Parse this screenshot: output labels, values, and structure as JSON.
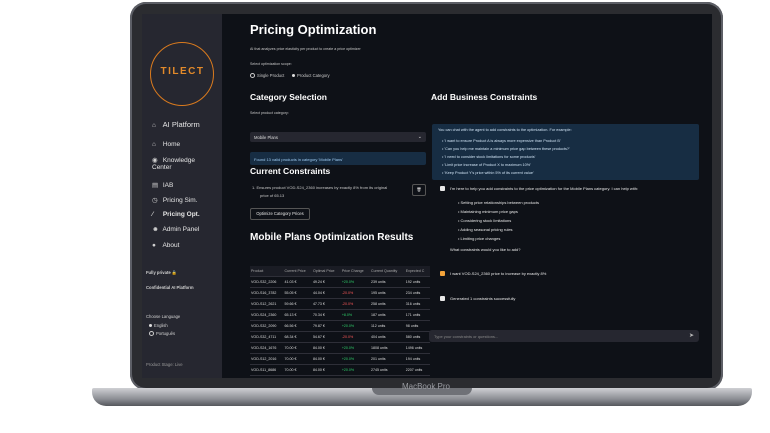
{
  "device": {
    "label": "MacBook Pro"
  },
  "sidebar": {
    "logo": "TILECT",
    "items": [
      {
        "label": "AI Platform",
        "icon": "house-icon"
      },
      {
        "label": "Home",
        "icon": "home-icon"
      },
      {
        "label": "Knowledge",
        "label2": "Center",
        "icon": "knowledge-icon"
      },
      {
        "label": "IAB",
        "icon": "chart-icon"
      },
      {
        "label": "Pricing Sim.",
        "icon": "pricing-icon"
      },
      {
        "label": "Pricing Opt.",
        "icon": "wand-icon"
      },
      {
        "label": "Admin Panel",
        "icon": "person-icon"
      },
      {
        "label": "About",
        "icon": "info-icon"
      }
    ],
    "fully_private": "Fully private 🔒",
    "confidential": "Confidential AI Platform",
    "language_label": "Choose Language",
    "languages": [
      "English",
      "Português"
    ],
    "stage": "Product Stage: Live"
  },
  "main": {
    "title": "Pricing Optimization",
    "subtitle": "AI that analyzes price elasticity per product to create a price optimizer",
    "scope_label": "Select optimization scope:",
    "scope_options": [
      "Single Product",
      "Product Category"
    ],
    "category_heading": "Category Selection",
    "category_label": "Select product category:",
    "category_value": "Mobile Plans",
    "found_info": "Found 13 valid products in category 'Mobile Plans'",
    "current_constraints_heading": "Current Constraints",
    "constraint_1": "1.  Ensures product VOD-S24_2360 increases by exactly 8% from its original",
    "constraint_1b": "price of 65.13",
    "optimize_button": "Optimize Category Prices",
    "results_heading": "Mobile Plans Optimization Results"
  },
  "table": {
    "headers": [
      "Product",
      "Current Price",
      "Optimal Price",
      "Price Change",
      "Current Quantity",
      "Expected C"
    ],
    "rows": [
      [
        "VOD-S32_2206",
        "41.03 €",
        "49.24 €",
        "+20.0%",
        "239 units",
        "192 units",
        "pos"
      ],
      [
        "VOD-S16_3782",
        "55.05 €",
        "44.04 €",
        "-20.0%",
        "195 units",
        "234 units",
        "neg"
      ],
      [
        "VOD-S12_2621",
        "59.66 €",
        "47.73 €",
        "-20.0%",
        "258 units",
        "316 units",
        "neg"
      ],
      [
        "VOD-S24_2360",
        "65.13 €",
        "70.34 €",
        "+8.0%",
        "187 units",
        "171 units",
        "pos"
      ],
      [
        "VOD-S32_2090",
        "66.56 €",
        "79.87 €",
        "+20.0%",
        "112 units",
        "98 units",
        "pos"
      ],
      [
        "VOD-S32_4711",
        "68.34 €",
        "54.67 €",
        "-20.0%",
        "404 units",
        "580 units",
        "neg"
      ],
      [
        "VOD-S24_1676",
        "70.00 €",
        "84.00 €",
        "+20.0%",
        "1808 units",
        "1496 units",
        "pos"
      ],
      [
        "VOD-S12_2016",
        "70.00 €",
        "84.00 €",
        "+20.0%",
        "201 units",
        "194 units",
        "pos"
      ],
      [
        "VOD-S11_8686",
        "70.00 €",
        "84.00 €",
        "+20.0%",
        "2745 units",
        "2207 units",
        "pos"
      ],
      [
        "VOD-S12_2822",
        "70.00 €",
        "84.00 €",
        "+20.0%",
        "2908 units",
        "2295 units",
        "pos"
      ]
    ]
  },
  "constraints_panel": {
    "heading": "Add Business Constraints",
    "intro": "You can chat with the agent to add constraints to the optimization. For example:",
    "examples": [
      "'I want to ensure Product A is always more expensive than Product B'",
      "'Can you help me maintain a minimum price gap between these products?'",
      "'I need to consider stock limitations for some products'",
      "'Limit price increase of Product X to maximum 10%'",
      "'Keep Product Y's price within 5% of its current value'"
    ],
    "assistant_intro": "I'm here to help you add constraints to the price optimization for the Mobile Plans category. I can help with:",
    "help_items": [
      "Setting price relationships between products",
      "Maintaining minimum price gaps",
      "Considering stock limitations",
      "Adding seasonal pricing rules",
      "Limiting price changes"
    ],
    "question": "What constraints would you like to add?",
    "user_message": "I want VOD-S24_2360 price to increase by exactly 8%",
    "assistant_reply": "Generated 1 constraints successfully",
    "input_placeholder": "Type your constraints or questions..."
  }
}
